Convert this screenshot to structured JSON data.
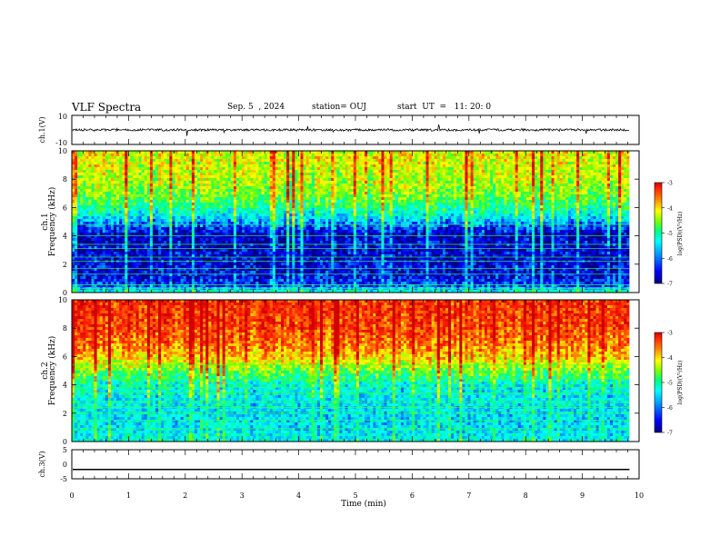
{
  "header": {
    "title": "VLF Spectra",
    "date": "Sep. 5  , 2024",
    "station": "station= OUJ",
    "start_ut": "start  UT  =   11: 20: 0"
  },
  "colors": {
    "spectrogram_colormap": [
      "#00007f",
      "#0000ff",
      "#00a0ff",
      "#00ffff",
      "#00ff80",
      "#7fff00",
      "#ffff00",
      "#ff8000",
      "#ff2000",
      "#d00000"
    ],
    "trace": "#000000"
  },
  "chart_data": [
    {
      "type": "line",
      "name": "ch1-waveform",
      "ylabel": "ch.1(V)",
      "yticks": [
        "10",
        "-10"
      ],
      "ylim": [
        -10,
        10
      ],
      "xlim": [
        0,
        10
      ],
      "x_end": 9.83,
      "level": 0,
      "noise_amplitude": 1.5
    },
    {
      "type": "heatmap",
      "name": "ch1-spectrogram",
      "ylabel": "ch.1\nFrequency  (kHz)",
      "yticks": [
        "0",
        "2",
        "4",
        "6",
        "8",
        "10"
      ],
      "ylim": [
        0,
        10
      ],
      "xlim": [
        0,
        10
      ],
      "x_end": 9.83,
      "colorbar": {
        "label": "log(PSD)(V²/Hz)",
        "ticks": [
          "-3",
          "-4",
          "-5",
          "-6",
          "-7"
        ],
        "range": [
          -7,
          -3
        ]
      },
      "profile_freq_khz": [
        0,
        0.5,
        1,
        2,
        3,
        4,
        4.5,
        5,
        6,
        7,
        8,
        9,
        10
      ],
      "profile_log_psd": [
        -5.5,
        -6.4,
        -6.6,
        -6.7,
        -6.7,
        -6.8,
        -6.5,
        -6.0,
        -5.3,
        -4.8,
        -4.6,
        -4.5,
        -4.4
      ],
      "horizontal_lines_khz": [
        0.3,
        0.55,
        1.3,
        1.7,
        2.2,
        2.5,
        3.1,
        3.4,
        4.0,
        4.8
      ]
    },
    {
      "type": "heatmap",
      "name": "ch2-spectrogram",
      "ylabel": "ch.2\nFrequency  (kHz)",
      "yticks": [
        "0",
        "2",
        "4",
        "6",
        "8",
        "10"
      ],
      "ylim": [
        0,
        10
      ],
      "xlim": [
        0,
        10
      ],
      "x_end": 9.83,
      "colorbar": {
        "label": "log(PSD)(V²/Hz)",
        "ticks": [
          "-3",
          "-4",
          "-5",
          "-6",
          "-7"
        ],
        "range": [
          -7,
          -3
        ]
      },
      "profile_freq_khz": [
        0,
        1,
        2,
        3,
        4,
        4.5,
        5,
        5.5,
        6,
        7,
        8,
        9,
        10
      ],
      "profile_log_psd": [
        -5.6,
        -5.8,
        -5.8,
        -5.7,
        -5.6,
        -5.2,
        -4.9,
        -4.5,
        -4.2,
        -3.8,
        -3.6,
        -3.5,
        -3.5
      ],
      "horizontal_lines_khz": [
        0.9,
        1.5,
        2.0,
        2.4,
        2.8,
        3.4,
        3.8,
        4.4,
        5.4
      ]
    },
    {
      "type": "line",
      "name": "ch3-waveform",
      "ylabel": "ch.3(V)",
      "yticks": [
        "5",
        "0",
        "-5"
      ],
      "ylim": [
        -5,
        5
      ],
      "xlim": [
        0,
        10
      ],
      "x_end": 9.83,
      "level": -1.8,
      "xlabel": "Time  (min)",
      "xticks": [
        "0",
        "1",
        "2",
        "3",
        "4",
        "5",
        "6",
        "7",
        "8",
        "9",
        "10"
      ]
    }
  ]
}
